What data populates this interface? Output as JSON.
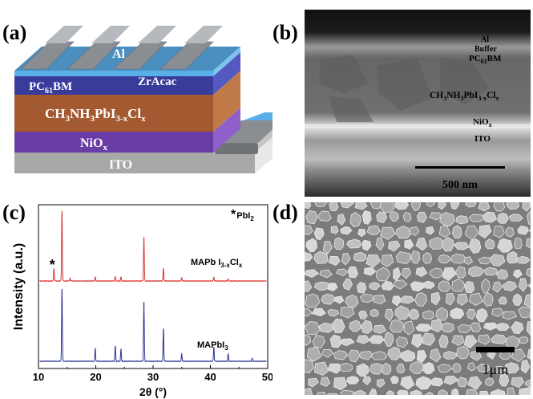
{
  "panels": {
    "a": {
      "label": "(a)"
    },
    "b": {
      "label": "(b)"
    },
    "c": {
      "label": "(c)"
    },
    "d": {
      "label": "(d)"
    }
  },
  "device": {
    "layers": {
      "al": "Al",
      "zracac": "ZrAcac",
      "pcbm": {
        "main": "PC",
        "sub": "61",
        "tail": "BM"
      },
      "perovskite": {
        "p1": "CH",
        "s1": "3",
        "p2": "NH",
        "s2": "3",
        "p3": "PbI",
        "s3": "3-x",
        "p4": "Cl",
        "s4": "x"
      },
      "nio": {
        "main": "NiO",
        "sub": "x"
      },
      "ito": "ITO"
    },
    "colors": {
      "al": "#8a8d92",
      "buffer": "#5ab0e6",
      "pcbm": "#3a3c9c",
      "perovskite": "#a45a30",
      "nio": "#6a3ca6",
      "ito": "#a8a8a8"
    }
  },
  "sem_cross_section": {
    "labels": {
      "al": "Al",
      "buffer": "Buffer",
      "pcbm": {
        "main": "PC",
        "sub": "61",
        "tail": "BM"
      },
      "perovskite": {
        "p1": "CH",
        "s1": "3",
        "p2": "NH",
        "s2": "3",
        "p3": "PbI",
        "s3": "3-x",
        "p4": "Cl",
        "s4": "x"
      },
      "nio": {
        "main": "NiO",
        "sub": "x"
      },
      "ito": "ITO"
    },
    "scale_bar": "500 nm"
  },
  "sem_surface": {
    "scale_bar": "1μm"
  },
  "chart_data": {
    "type": "line",
    "xlabel": "2θ (°)",
    "ylabel": "Intensity (a.u.)",
    "xlim": [
      10,
      50
    ],
    "x_ticks": [
      10,
      20,
      30,
      40,
      50
    ],
    "y_tick_labels": false,
    "legend_note": {
      "symbol": "*",
      "text": "PbI",
      "sub": "2"
    },
    "peak_marker": {
      "symbol": "*",
      "x": 12.7
    },
    "series": [
      {
        "name": "MAPb I3-xClx",
        "label_parts": {
          "p1": "MAPb I",
          "s1": "3-x",
          "p2": "Cl",
          "s2": "x"
        },
        "color": "#d9342b",
        "peaks": [
          {
            "x": 12.7,
            "h": 0.17
          },
          {
            "x": 14.1,
            "h": 0.95
          },
          {
            "x": 15.5,
            "h": 0.04
          },
          {
            "x": 19.9,
            "h": 0.05
          },
          {
            "x": 23.4,
            "h": 0.06
          },
          {
            "x": 24.4,
            "h": 0.05
          },
          {
            "x": 28.4,
            "h": 0.6
          },
          {
            "x": 31.8,
            "h": 0.17
          },
          {
            "x": 35.0,
            "h": 0.04
          },
          {
            "x": 40.6,
            "h": 0.05
          },
          {
            "x": 43.1,
            "h": 0.03
          }
        ]
      },
      {
        "name": "MAPbI3",
        "label_parts": {
          "p1": "MAPbI",
          "s1": "3"
        },
        "color": "#2c3494",
        "peaks": [
          {
            "x": 14.1,
            "h": 1.0
          },
          {
            "x": 19.9,
            "h": 0.18
          },
          {
            "x": 23.4,
            "h": 0.21
          },
          {
            "x": 24.4,
            "h": 0.17
          },
          {
            "x": 28.4,
            "h": 0.82
          },
          {
            "x": 31.8,
            "h": 0.45
          },
          {
            "x": 35.0,
            "h": 0.1
          },
          {
            "x": 40.6,
            "h": 0.2
          },
          {
            "x": 43.1,
            "h": 0.1
          },
          {
            "x": 47.3,
            "h": 0.04
          }
        ]
      }
    ]
  }
}
